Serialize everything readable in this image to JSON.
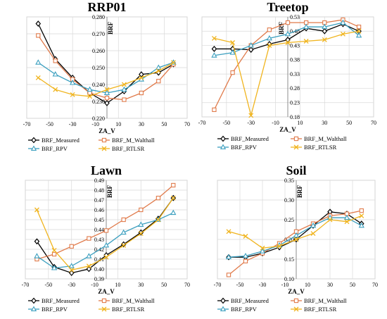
{
  "colors": {
    "BRF_Measured": "#000000",
    "BRF_M_Walthall": "#e07a4a",
    "BRF_RPV": "#3b9fbf",
    "BRF_RTLSR": "#f0b41e",
    "grid": "#d9d9d9"
  },
  "chart_data": [
    {
      "type": "line",
      "title": "RRP01",
      "xlabel": "ZA_V",
      "ylabel": "BRF",
      "xlim": [
        -70,
        70
      ],
      "ylim": [
        0.22,
        0.28
      ],
      "xticks": [
        -70,
        -50,
        -30,
        -10,
        10,
        30,
        50,
        70
      ],
      "yticks": [
        "0.220",
        "0.230",
        "0.240",
        "0.250",
        "0.260",
        "0.270",
        "0.280"
      ],
      "yaxis_position": "left",
      "grid": true,
      "legend": "bottom",
      "series": [
        {
          "name": "BRF_Measured",
          "marker": "diamond",
          "x": [
            -60,
            -45,
            -30,
            -15,
            0,
            15,
            30,
            45,
            58
          ],
          "y": [
            0.276,
            0.255,
            0.244,
            0.235,
            0.229,
            0.236,
            0.246,
            0.247,
            0.252
          ]
        },
        {
          "name": "BRF_M_Walthall",
          "marker": "square",
          "x": [
            -60,
            -45,
            -30,
            -15,
            0,
            15,
            30,
            45,
            58
          ],
          "y": [
            0.269,
            0.254,
            0.243,
            0.235,
            0.232,
            0.231,
            0.235,
            0.242,
            0.252
          ]
        },
        {
          "name": "BRF_RPV",
          "marker": "triangle",
          "x": [
            -60,
            -45,
            -30,
            -15,
            0,
            15,
            30,
            45,
            58
          ],
          "y": [
            0.253,
            0.246,
            0.241,
            0.237,
            0.235,
            0.237,
            0.243,
            0.25,
            0.253
          ]
        },
        {
          "name": "BRF_RTLSR",
          "marker": "x",
          "x": [
            -60,
            -45,
            -30,
            -15,
            0,
            15,
            30,
            45,
            58
          ],
          "y": [
            0.244,
            0.237,
            0.234,
            0.233,
            0.237,
            0.24,
            0.244,
            0.248,
            0.253
          ]
        }
      ]
    },
    {
      "type": "line",
      "title": "Treetop",
      "xlabel": "ZA_V",
      "ylabel": "BRF",
      "xlim": [
        -70,
        70
      ],
      "ylim": [
        0.18,
        0.53
      ],
      "xticks": [
        -70,
        -50,
        -30,
        -10,
        10,
        30,
        50,
        70
      ],
      "yticks": [
        "0.18",
        "0.23",
        "0.28",
        "0.33",
        "0.38",
        "0.43",
        "0.48",
        "0.53"
      ],
      "yaxis_position": "right",
      "grid": true,
      "legend": "bottom",
      "series": [
        {
          "name": "BRF_Measured",
          "marker": "diamond",
          "x": [
            -60,
            -45,
            -30,
            -15,
            0,
            15,
            30,
            45,
            58
          ],
          "y": [
            0.418,
            0.418,
            0.415,
            0.435,
            0.45,
            0.49,
            0.48,
            0.505,
            0.48
          ]
        },
        {
          "name": "BRF_M_Walthall",
          "marker": "square",
          "x": [
            -60,
            -45,
            -30,
            -15,
            0,
            15,
            30,
            45,
            58
          ],
          "y": [
            0.205,
            0.335,
            0.43,
            0.485,
            0.51,
            0.51,
            0.51,
            0.52,
            0.495
          ]
        },
        {
          "name": "BRF_RPV",
          "marker": "triangle",
          "x": [
            -60,
            -45,
            -30,
            -15,
            0,
            15,
            30,
            45,
            58
          ],
          "y": [
            0.395,
            0.405,
            0.43,
            0.455,
            0.47,
            0.495,
            0.495,
            0.51,
            0.465
          ]
        },
        {
          "name": "BRF_RTLSR",
          "marker": "x",
          "x": [
            -60,
            -45,
            -30,
            -15,
            0,
            15,
            30,
            45,
            58
          ],
          "y": [
            0.455,
            0.44,
            0.185,
            0.43,
            0.44,
            0.445,
            0.45,
            0.47,
            0.48
          ]
        }
      ]
    },
    {
      "type": "line",
      "title": "Lawn",
      "xlabel": "ZA_V",
      "ylabel": "BRF",
      "xlim": [
        -70,
        70
      ],
      "ylim": [
        0.39,
        0.49
      ],
      "xticks": [
        -70,
        -50,
        -30,
        -10,
        10,
        30,
        50,
        70
      ],
      "yticks": [
        "0.39",
        "0.40",
        "0.41",
        "0.42",
        "0.43",
        "0.44",
        "0.45",
        "0.46",
        "0.47",
        "0.48",
        "0.49"
      ],
      "yaxis_position": "left",
      "grid": true,
      "legend": "bottom",
      "series": [
        {
          "name": "BRF_Measured",
          "marker": "diamond",
          "x": [
            -60,
            -45,
            -30,
            -15,
            0,
            15,
            30,
            45,
            58
          ],
          "y": [
            0.428,
            0.402,
            0.396,
            0.4,
            0.414,
            0.425,
            0.437,
            0.451,
            0.472
          ]
        },
        {
          "name": "BRF_M_Walthall",
          "marker": "square",
          "x": [
            -60,
            -45,
            -30,
            -15,
            0,
            15,
            30,
            45,
            58
          ],
          "y": [
            0.41,
            0.415,
            0.423,
            0.431,
            0.439,
            0.45,
            0.46,
            0.472,
            0.485
          ]
        },
        {
          "name": "BRF_RPV",
          "marker": "triangle",
          "x": [
            -60,
            -45,
            -30,
            -15,
            0,
            15,
            30,
            45,
            58
          ],
          "y": [
            0.413,
            0.401,
            0.403,
            0.413,
            0.424,
            0.437,
            0.445,
            0.45,
            0.457
          ]
        },
        {
          "name": "BRF_RTLSR",
          "marker": "x",
          "x": [
            -60,
            -45,
            -30,
            -15,
            0,
            15,
            30,
            45,
            58
          ],
          "y": [
            0.46,
            0.419,
            0.399,
            0.403,
            0.412,
            0.424,
            0.436,
            0.45,
            0.472
          ]
        }
      ]
    },
    {
      "type": "line",
      "title": "Soil",
      "xlabel": "ZA_V",
      "ylabel": "BRF",
      "xlim": [
        -70,
        70
      ],
      "ylim": [
        0.1,
        0.35
      ],
      "xticks": [
        -70,
        -50,
        -30,
        -10,
        10,
        30,
        50,
        70
      ],
      "yticks": [
        "0.10",
        "0.15",
        "0.20",
        "0.25",
        "0.30",
        "0.35"
      ],
      "yaxis_position": "left",
      "grid": true,
      "legend": "bottom",
      "series": [
        {
          "name": "BRF_Measured",
          "marker": "diamond",
          "x": [
            -60,
            -45,
            -30,
            -15,
            0,
            15,
            30,
            45,
            58
          ],
          "y": [
            0.155,
            0.155,
            0.165,
            0.18,
            0.2,
            0.235,
            0.27,
            0.265,
            0.24
          ]
        },
        {
          "name": "BRF_M_Walthall",
          "marker": "square",
          "x": [
            -60,
            -45,
            -30,
            -15,
            0,
            15,
            30,
            45,
            58
          ],
          "y": [
            0.11,
            0.145,
            0.165,
            0.19,
            0.22,
            0.24,
            0.26,
            0.265,
            0.273
          ]
        },
        {
          "name": "BRF_RPV",
          "marker": "triangle",
          "x": [
            -60,
            -45,
            -30,
            -15,
            0,
            15,
            30,
            45,
            58
          ],
          "y": [
            0.155,
            0.158,
            0.17,
            0.185,
            0.21,
            0.235,
            0.255,
            0.255,
            0.235
          ]
        },
        {
          "name": "BRF_RTLSR",
          "marker": "x",
          "x": [
            -60,
            -45,
            -30,
            -15,
            0,
            15,
            30,
            45,
            58
          ],
          "y": [
            0.22,
            0.208,
            0.178,
            0.183,
            0.2,
            0.215,
            0.25,
            0.245,
            0.26
          ]
        }
      ]
    }
  ]
}
